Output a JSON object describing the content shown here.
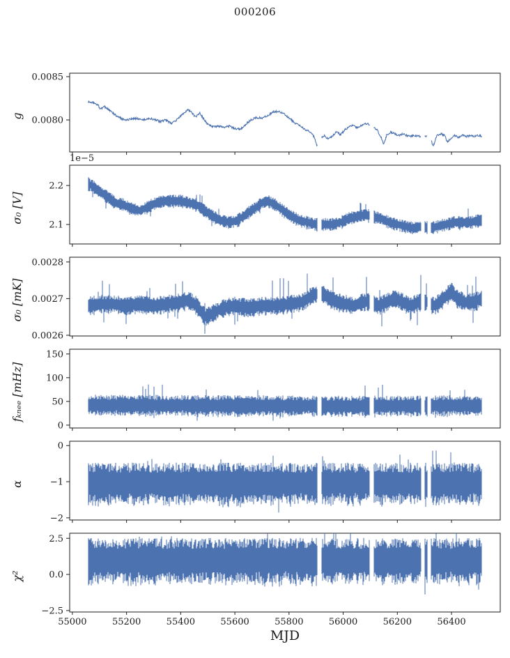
{
  "chart_data": {
    "type": "line",
    "title": "000206",
    "xlabel": "MJD",
    "color": "#4c72b0",
    "axis_color": "#1a1a1a",
    "xlim": [
      54990,
      56580
    ],
    "x_data_range": [
      55058,
      56512
    ],
    "xticks": [
      {
        "v": 55000,
        "l": "55000"
      },
      {
        "v": 55200,
        "l": "55200"
      },
      {
        "v": 55400,
        "l": "55400"
      },
      {
        "v": 55600,
        "l": "55600"
      },
      {
        "v": 55800,
        "l": "55800"
      },
      {
        "v": 56000,
        "l": "56000"
      },
      {
        "v": 56200,
        "l": "56200"
      },
      {
        "v": 56400,
        "l": "56400"
      }
    ],
    "data_gaps": [
      [
        55905,
        55920
      ],
      [
        56098,
        56112
      ],
      [
        56288,
        56300
      ],
      [
        56310,
        56324
      ]
    ],
    "panels": [
      {
        "name": "g",
        "ylabel": "g",
        "ylim": [
          0.00763,
          0.00854
        ],
        "yticks": [
          {
            "v": 0.0085,
            "l": "0.0085"
          },
          {
            "v": 0.008,
            "l": "0.0080"
          }
        ],
        "render": "smooth",
        "noise": 1.2e-05,
        "spike_rate": 0,
        "spike_amp": 0,
        "trend": [
          [
            55058,
            0.00821
          ],
          [
            55075,
            0.0082
          ],
          [
            55095,
            0.00817
          ],
          [
            55105,
            0.00812
          ],
          [
            55115,
            0.00816
          ],
          [
            55130,
            0.00813
          ],
          [
            55145,
            0.00809
          ],
          [
            55165,
            0.00804
          ],
          [
            55185,
            0.00801
          ],
          [
            55205,
            0.008
          ],
          [
            55235,
            0.00802
          ],
          [
            55265,
            0.008
          ],
          [
            55285,
            0.00802
          ],
          [
            55305,
            0.008
          ],
          [
            55325,
            0.00798
          ],
          [
            55345,
            0.008
          ],
          [
            55365,
            0.00796
          ],
          [
            55385,
            0.008
          ],
          [
            55405,
            0.00806
          ],
          [
            55425,
            0.00812
          ],
          [
            55440,
            0.00809
          ],
          [
            55455,
            0.00803
          ],
          [
            55470,
            0.00808
          ],
          [
            55485,
            0.00801
          ],
          [
            55500,
            0.00795
          ],
          [
            55520,
            0.00792
          ],
          [
            55540,
            0.00793
          ],
          [
            55560,
            0.00791
          ],
          [
            55580,
            0.00793
          ],
          [
            55600,
            0.0079
          ],
          [
            55620,
            0.00789
          ],
          [
            55640,
            0.00795
          ],
          [
            55660,
            0.008
          ],
          [
            55680,
            0.00803
          ],
          [
            55700,
            0.00802
          ],
          [
            55720,
            0.00805
          ],
          [
            55740,
            0.00809
          ],
          [
            55760,
            0.0081
          ],
          [
            55780,
            0.00808
          ],
          [
            55800,
            0.00802
          ],
          [
            55820,
            0.00797
          ],
          [
            55840,
            0.00793
          ],
          [
            55860,
            0.00789
          ],
          [
            55880,
            0.00786
          ],
          [
            55895,
            0.00779
          ],
          [
            55902,
            0.0077
          ],
          [
            55915,
            0.00779
          ],
          [
            55930,
            0.00782
          ],
          [
            55945,
            0.00778
          ],
          [
            55960,
            0.00781
          ],
          [
            55975,
            0.00786
          ],
          [
            55990,
            0.00783
          ],
          [
            56005,
            0.00788
          ],
          [
            56020,
            0.00792
          ],
          [
            56035,
            0.00794
          ],
          [
            56050,
            0.00791
          ],
          [
            56065,
            0.00793
          ],
          [
            56080,
            0.00796
          ],
          [
            56095,
            0.00795
          ],
          [
            56110,
            0.00792
          ],
          [
            56125,
            0.00789
          ],
          [
            56140,
            0.0078
          ],
          [
            56150,
            0.00772
          ],
          [
            56160,
            0.00782
          ],
          [
            56175,
            0.00786
          ],
          [
            56190,
            0.00784
          ],
          [
            56205,
            0.00782
          ],
          [
            56220,
            0.00784
          ],
          [
            56235,
            0.00782
          ],
          [
            56250,
            0.00781
          ],
          [
            56265,
            0.00782
          ],
          [
            56280,
            0.00781
          ],
          [
            56295,
            0.0078
          ],
          [
            56310,
            0.00781
          ],
          [
            56325,
            0.00776
          ],
          [
            56333,
            0.0077
          ],
          [
            56345,
            0.00782
          ],
          [
            56360,
            0.00784
          ],
          [
            56375,
            0.00782
          ],
          [
            56385,
            0.00774
          ],
          [
            56395,
            0.00778
          ],
          [
            56410,
            0.00782
          ],
          [
            56425,
            0.0078
          ],
          [
            56440,
            0.00782
          ],
          [
            56455,
            0.00781
          ],
          [
            56470,
            0.00782
          ],
          [
            56485,
            0.00781
          ],
          [
            56500,
            0.00782
          ],
          [
            56512,
            0.00781
          ]
        ]
      },
      {
        "name": "sigma0-v",
        "ylabel": "σ₀ [V]",
        "offset_label": "1e−5",
        "units_scale": "1e-5",
        "ylim": [
          2.05,
          2.252
        ],
        "yticks": [
          {
            "v": 2.2,
            "l": "2.2"
          },
          {
            "v": 2.1,
            "l": "2.1"
          }
        ],
        "render": "noisy",
        "noise": 0.016,
        "spike_rate": 0.02,
        "spike_amp": 0.018,
        "trend": [
          [
            55058,
            2.205
          ],
          [
            55080,
            2.195
          ],
          [
            55100,
            2.185
          ],
          [
            55130,
            2.17
          ],
          [
            55160,
            2.155
          ],
          [
            55190,
            2.15
          ],
          [
            55220,
            2.14
          ],
          [
            55250,
            2.135
          ],
          [
            55280,
            2.145
          ],
          [
            55310,
            2.155
          ],
          [
            55340,
            2.16
          ],
          [
            55370,
            2.16
          ],
          [
            55400,
            2.16
          ],
          [
            55430,
            2.155
          ],
          [
            55460,
            2.15
          ],
          [
            55490,
            2.135
          ],
          [
            55520,
            2.12
          ],
          [
            55550,
            2.11
          ],
          [
            55580,
            2.105
          ],
          [
            55610,
            2.11
          ],
          [
            55640,
            2.125
          ],
          [
            55670,
            2.14
          ],
          [
            55700,
            2.155
          ],
          [
            55720,
            2.16
          ],
          [
            55750,
            2.15
          ],
          [
            55780,
            2.135
          ],
          [
            55810,
            2.12
          ],
          [
            55840,
            2.11
          ],
          [
            55870,
            2.105
          ],
          [
            55900,
            2.1
          ],
          [
            55930,
            2.1
          ],
          [
            55960,
            2.1
          ],
          [
            55990,
            2.105
          ],
          [
            56020,
            2.115
          ],
          [
            56050,
            2.12
          ],
          [
            56080,
            2.125
          ],
          [
            56110,
            2.12
          ],
          [
            56140,
            2.115
          ],
          [
            56170,
            2.105
          ],
          [
            56200,
            2.1
          ],
          [
            56230,
            2.095
          ],
          [
            56260,
            2.09
          ],
          [
            56290,
            2.095
          ],
          [
            56320,
            2.09
          ],
          [
            56350,
            2.095
          ],
          [
            56380,
            2.1
          ],
          [
            56410,
            2.105
          ],
          [
            56440,
            2.105
          ],
          [
            56470,
            2.105
          ],
          [
            56500,
            2.11
          ]
        ]
      },
      {
        "name": "sigma0-mk",
        "ylabel": "σ₀ [mK]",
        "ylim": [
          0.002598,
          0.002813
        ],
        "yticks": [
          {
            "v": 0.0028,
            "l": "0.0028"
          },
          {
            "v": 0.0027,
            "l": "0.0027"
          },
          {
            "v": 0.0026,
            "l": "0.0026"
          }
        ],
        "render": "noisy",
        "noise": 2.4e-05,
        "spike_rate": 0.05,
        "spike_amp": 4e-05,
        "trend": [
          [
            55058,
            0.00268
          ],
          [
            55100,
            0.002685
          ],
          [
            55150,
            0.002685
          ],
          [
            55200,
            0.00268
          ],
          [
            55250,
            0.002685
          ],
          [
            55300,
            0.00268
          ],
          [
            55350,
            0.002685
          ],
          [
            55400,
            0.00269
          ],
          [
            55430,
            0.002695
          ],
          [
            55460,
            0.00268
          ],
          [
            55490,
            0.00265
          ],
          [
            55520,
            0.00266
          ],
          [
            55560,
            0.002675
          ],
          [
            55600,
            0.00268
          ],
          [
            55650,
            0.002675
          ],
          [
            55700,
            0.00268
          ],
          [
            55750,
            0.00268
          ],
          [
            55800,
            0.002685
          ],
          [
            55850,
            0.00269
          ],
          [
            55890,
            0.00271
          ],
          [
            55920,
            0.002715
          ],
          [
            55950,
            0.0027
          ],
          [
            55980,
            0.00269
          ],
          [
            56010,
            0.002685
          ],
          [
            56040,
            0.00268
          ],
          [
            56070,
            0.00269
          ],
          [
            56100,
            0.00269
          ],
          [
            56130,
            0.00268
          ],
          [
            56160,
            0.00269
          ],
          [
            56190,
            0.0027
          ],
          [
            56220,
            0.00269
          ],
          [
            56250,
            0.00268
          ],
          [
            56280,
            0.00269
          ],
          [
            56310,
            0.00269
          ],
          [
            56340,
            0.00268
          ],
          [
            56370,
            0.0027
          ],
          [
            56400,
            0.00272
          ],
          [
            56420,
            0.0027
          ],
          [
            56450,
            0.00269
          ],
          [
            56480,
            0.00269
          ],
          [
            56512,
            0.0027
          ]
        ]
      },
      {
        "name": "fknee",
        "ylabel": "fₖₙₑₑ [mHz]",
        "ylim": [
          -6,
          160
        ],
        "yticks": [
          {
            "v": 150,
            "l": "150"
          },
          {
            "v": 100,
            "l": "100"
          },
          {
            "v": 50,
            "l": "50"
          },
          {
            "v": 0,
            "l": "0"
          }
        ],
        "render": "noisy",
        "noise": 21,
        "spike_rate": 0.02,
        "spike_amp": 24,
        "trend": [
          [
            55058,
            42
          ],
          [
            55600,
            41
          ],
          [
            56000,
            40
          ],
          [
            56512,
            41
          ]
        ]
      },
      {
        "name": "alpha",
        "ylabel": "α",
        "ylim": [
          -2.06,
          0.12
        ],
        "yticks": [
          {
            "v": 0,
            "l": "0"
          },
          {
            "v": -1,
            "l": "−1"
          },
          {
            "v": -2,
            "l": "−2"
          }
        ],
        "render": "noisy",
        "noise": 0.55,
        "spike_rate": 0.02,
        "spike_amp": 0.32,
        "trend": [
          [
            55058,
            -1.05
          ],
          [
            56512,
            -1.05
          ]
        ]
      },
      {
        "name": "chi2",
        "ylabel": "χ²",
        "ylim": [
          -2.6,
          2.85
        ],
        "yticks": [
          {
            "v": 2.5,
            "l": "2.5"
          },
          {
            "v": 0.0,
            "l": "0.0"
          },
          {
            "v": -2.5,
            "l": "−2.5"
          }
        ],
        "render": "noisy",
        "noise": 1.5,
        "spike_rate": 0.03,
        "spike_amp": 0.85,
        "trend": [
          [
            55058,
            0.95
          ],
          [
            56512,
            0.95
          ]
        ]
      }
    ]
  }
}
